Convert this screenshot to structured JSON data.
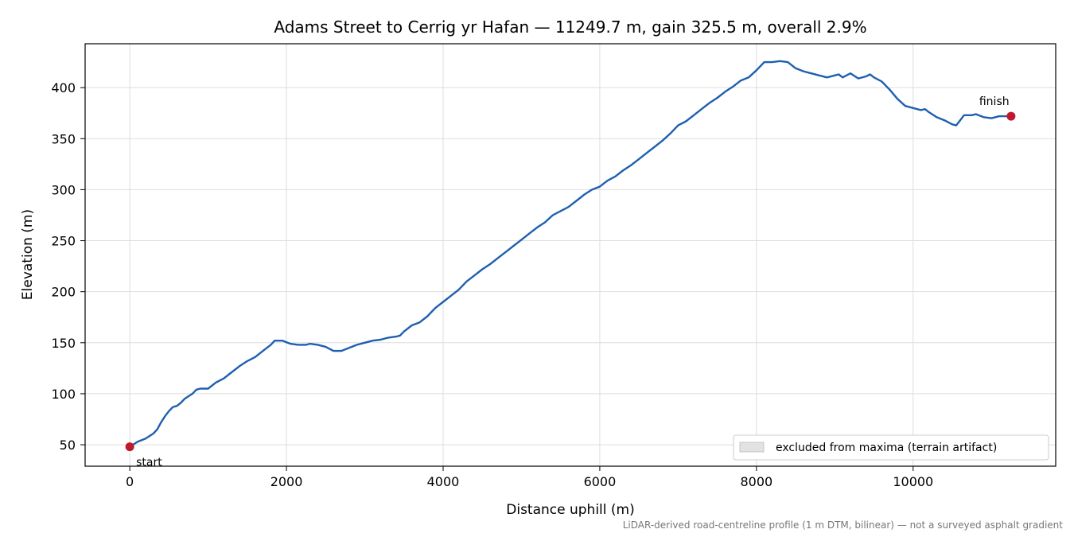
{
  "chart_data": {
    "type": "line",
    "title": "Adams Street to Cerrig yr Hafan — 11249.7 m, gain 325.5 m, overall 2.9%",
    "xlabel": "Distance uphill (m)",
    "ylabel": "Elevation (m)",
    "xlim": [
      -570,
      11820
    ],
    "ylim": [
      29,
      443
    ],
    "x_ticks": [
      0,
      2000,
      4000,
      6000,
      8000,
      10000
    ],
    "x_tick_labels": [
      "0",
      "2000",
      "4000",
      "6000",
      "8000",
      "10000"
    ],
    "y_ticks": [
      50,
      100,
      150,
      200,
      250,
      300,
      350,
      400
    ],
    "y_tick_labels": [
      "50",
      "100",
      "150",
      "200",
      "250",
      "300",
      "350",
      "400"
    ],
    "grid": true,
    "legend_position": "lower-right",
    "legend": [
      {
        "label": "excluded from maxima (terrain artifact)",
        "swatch": "shaded-band"
      }
    ],
    "series": [
      {
        "color": "#1f5fb0",
        "points": [
          [
            0,
            48
          ],
          [
            100,
            53
          ],
          [
            200,
            56
          ],
          [
            300,
            61
          ],
          [
            350,
            65
          ],
          [
            400,
            72
          ],
          [
            450,
            78
          ],
          [
            500,
            83
          ],
          [
            550,
            87
          ],
          [
            600,
            88
          ],
          [
            650,
            91
          ],
          [
            700,
            95
          ],
          [
            800,
            100
          ],
          [
            850,
            104
          ],
          [
            900,
            105
          ],
          [
            1000,
            105
          ],
          [
            1100,
            111
          ],
          [
            1200,
            115
          ],
          [
            1300,
            121
          ],
          [
            1400,
            127
          ],
          [
            1500,
            132
          ],
          [
            1600,
            136
          ],
          [
            1700,
            142
          ],
          [
            1800,
            148
          ],
          [
            1850,
            152
          ],
          [
            1950,
            152
          ],
          [
            2050,
            149
          ],
          [
            2150,
            148
          ],
          [
            2250,
            148
          ],
          [
            2300,
            149
          ],
          [
            2400,
            148
          ],
          [
            2500,
            146
          ],
          [
            2600,
            142
          ],
          [
            2700,
            142
          ],
          [
            2800,
            145
          ],
          [
            2900,
            148
          ],
          [
            3000,
            150
          ],
          [
            3100,
            152
          ],
          [
            3200,
            153
          ],
          [
            3300,
            155
          ],
          [
            3400,
            156
          ],
          [
            3450,
            157
          ],
          [
            3500,
            161
          ],
          [
            3600,
            167
          ],
          [
            3700,
            170
          ],
          [
            3800,
            176
          ],
          [
            3900,
            184
          ],
          [
            4000,
            190
          ],
          [
            4100,
            196
          ],
          [
            4200,
            202
          ],
          [
            4300,
            210
          ],
          [
            4400,
            216
          ],
          [
            4500,
            222
          ],
          [
            4600,
            227
          ],
          [
            4700,
            233
          ],
          [
            4800,
            239
          ],
          [
            4900,
            245
          ],
          [
            5000,
            251
          ],
          [
            5100,
            257
          ],
          [
            5200,
            263
          ],
          [
            5300,
            268
          ],
          [
            5400,
            275
          ],
          [
            5500,
            279
          ],
          [
            5600,
            283
          ],
          [
            5700,
            289
          ],
          [
            5800,
            295
          ],
          [
            5900,
            300
          ],
          [
            6000,
            303
          ],
          [
            6100,
            309
          ],
          [
            6200,
            313
          ],
          [
            6300,
            319
          ],
          [
            6400,
            324
          ],
          [
            6500,
            330
          ],
          [
            6600,
            336
          ],
          [
            6700,
            342
          ],
          [
            6800,
            348
          ],
          [
            6900,
            355
          ],
          [
            7000,
            363
          ],
          [
            7100,
            367
          ],
          [
            7200,
            373
          ],
          [
            7300,
            379
          ],
          [
            7400,
            385
          ],
          [
            7500,
            390
          ],
          [
            7600,
            396
          ],
          [
            7700,
            401
          ],
          [
            7800,
            407
          ],
          [
            7900,
            410
          ],
          [
            8000,
            417
          ],
          [
            8050,
            421
          ],
          [
            8100,
            425
          ],
          [
            8200,
            425
          ],
          [
            8300,
            426
          ],
          [
            8400,
            425
          ],
          [
            8500,
            419
          ],
          [
            8600,
            416
          ],
          [
            8700,
            414
          ],
          [
            8800,
            412
          ],
          [
            8900,
            410
          ],
          [
            9000,
            412
          ],
          [
            9050,
            413
          ],
          [
            9100,
            410
          ],
          [
            9200,
            414
          ],
          [
            9300,
            409
          ],
          [
            9400,
            411
          ],
          [
            9450,
            413
          ],
          [
            9500,
            410
          ],
          [
            9600,
            406
          ],
          [
            9700,
            398
          ],
          [
            9800,
            389
          ],
          [
            9900,
            382
          ],
          [
            10000,
            380
          ],
          [
            10100,
            378
          ],
          [
            10150,
            379
          ],
          [
            10200,
            376
          ],
          [
            10300,
            371
          ],
          [
            10400,
            368
          ],
          [
            10500,
            364
          ],
          [
            10550,
            363
          ],
          [
            10600,
            368
          ],
          [
            10650,
            373
          ],
          [
            10750,
            373
          ],
          [
            10800,
            374
          ],
          [
            10900,
            371
          ],
          [
            11000,
            370
          ],
          [
            11100,
            372
          ],
          [
            11200,
            372
          ],
          [
            11250,
            372
          ]
        ]
      }
    ],
    "markers": [
      {
        "x": 0,
        "y": 48,
        "label": "start",
        "color": "#c0192e"
      },
      {
        "x": 11250,
        "y": 372,
        "label": "finish",
        "color": "#c0192e"
      }
    ],
    "footnote": "LiDAR-derived road-centreline profile (1 m DTM, bilinear) — not a surveyed asphalt gradient"
  }
}
